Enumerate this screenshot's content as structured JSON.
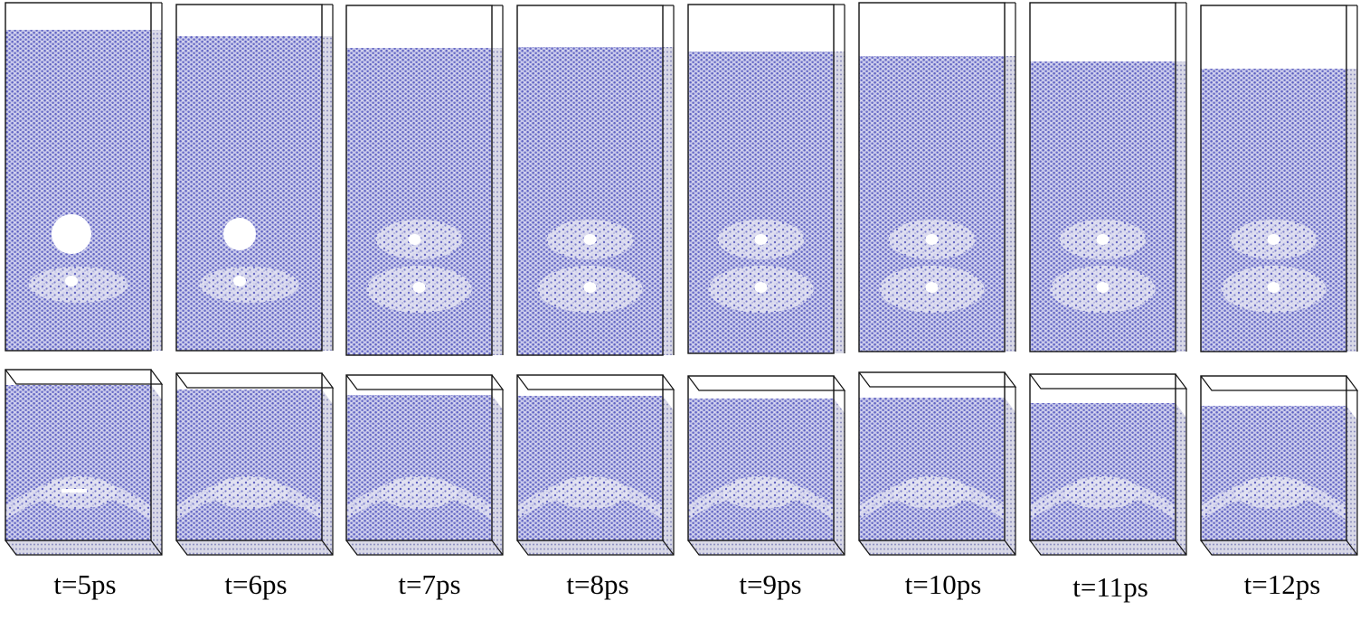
{
  "figure": {
    "colors": {
      "atom": "#6c6ec8",
      "atom_light": "#b9bbe2",
      "box": "#111111",
      "background": "#ffffff"
    },
    "frames": [
      {
        "label": "t=5ps",
        "large_void": true,
        "small_void": true
      },
      {
        "label": "t=6ps",
        "large_void": true,
        "small_void": true
      },
      {
        "label": "t=7ps",
        "large_void": false,
        "small_void": true
      },
      {
        "label": "t=8ps",
        "large_void": false,
        "small_void": true
      },
      {
        "label": "t=9ps",
        "large_void": false,
        "small_void": true
      },
      {
        "label": "t=10ps",
        "large_void": false,
        "small_void": true
      },
      {
        "label": "t=11ps",
        "large_void": false,
        "small_void": true
      },
      {
        "label": "t=12ps",
        "large_void": false,
        "small_void": true
      }
    ]
  }
}
